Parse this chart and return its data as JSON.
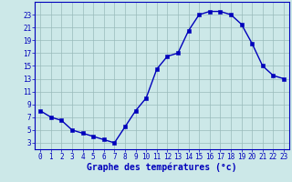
{
  "hours": [
    0,
    1,
    2,
    3,
    4,
    5,
    6,
    7,
    8,
    9,
    10,
    11,
    12,
    13,
    14,
    15,
    16,
    17,
    18,
    19,
    20,
    21,
    22,
    23
  ],
  "temps": [
    8,
    7,
    6.5,
    5,
    4.5,
    4,
    3.5,
    3,
    5.5,
    8,
    10,
    14.5,
    16.5,
    17,
    20.5,
    23,
    23.5,
    23.5,
    23,
    21.5,
    18.5,
    15,
    13.5,
    13
  ],
  "bg_color": "#cce8e8",
  "line_color": "#0000bb",
  "marker_color": "#0000bb",
  "grid_color": "#99bbbb",
  "axis_label_color": "#0000bb",
  "tick_color": "#0000bb",
  "xlabel": "Graphe des températures (°c)",
  "ylim": [
    2,
    25
  ],
  "yticks": [
    3,
    5,
    7,
    9,
    11,
    13,
    15,
    17,
    19,
    21,
    23
  ],
  "xticks": [
    0,
    1,
    2,
    3,
    4,
    5,
    6,
    7,
    8,
    9,
    10,
    11,
    12,
    13,
    14,
    15,
    16,
    17,
    18,
    19,
    20,
    21,
    22,
    23
  ],
  "spine_color": "#0000bb",
  "tick_fontsize": 5.5,
  "xlabel_fontsize": 7.0,
  "linewidth": 1.0,
  "markersize": 2.2
}
